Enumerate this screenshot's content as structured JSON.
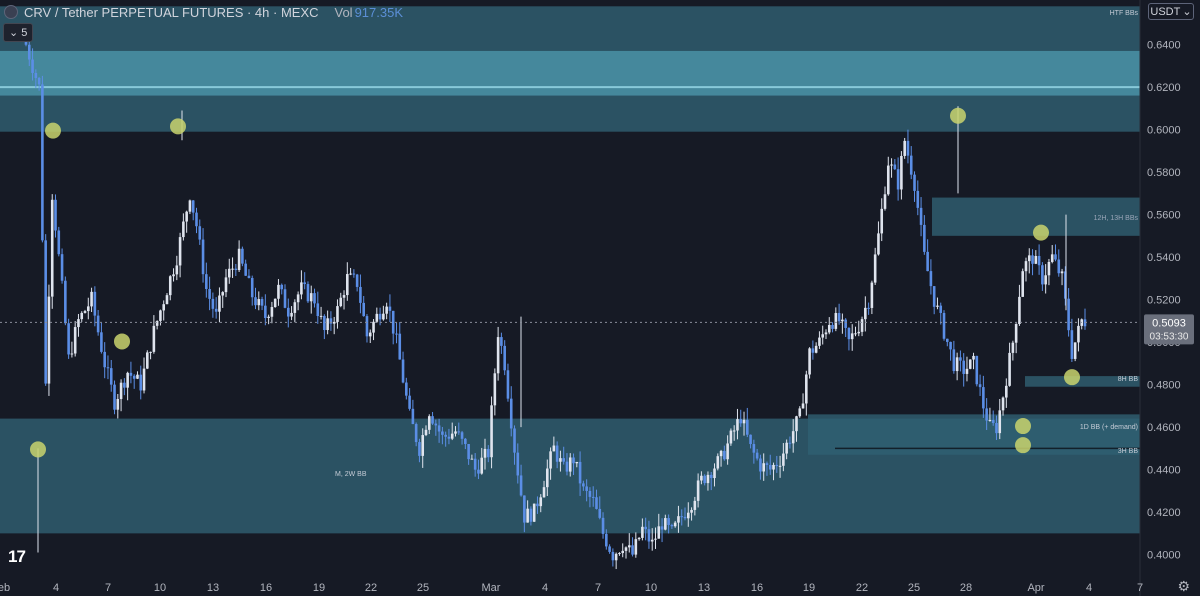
{
  "header": {
    "symbol": "CRV / Tether PERPETUAL FUTURES · 4h · MEXC",
    "vol_label": "Vol",
    "vol_value": "917.35K",
    "indicator_count": "5",
    "currency": "USDT"
  },
  "colors": {
    "background": "#161a25",
    "zone": "#2f5f72",
    "zone_band": "#4a92a6",
    "candle_up": "#dfe4ee",
    "candle_down": "#5b8ee6",
    "marker": "#c9d46d",
    "price_line": "#8a8f9c"
  },
  "chart_data": {
    "type": "candlestick",
    "x_ticks": [
      "eb",
      "4",
      "7",
      "10",
      "13",
      "16",
      "19",
      "22",
      "25",
      "Mar",
      "4",
      "7",
      "10",
      "13",
      "16",
      "19",
      "22",
      "25",
      "28",
      "Apr",
      "4",
      "7"
    ],
    "y_ticks": [
      "0.6400",
      "0.6200",
      "0.6000",
      "0.5800",
      "0.5600",
      "0.5400",
      "0.5200",
      "0.5000",
      "0.4800",
      "0.4600",
      "0.4400",
      "0.4200",
      "0.4000"
    ],
    "ylim": [
      0.389,
      0.6525
    ],
    "current_price": {
      "value": 0.5093,
      "label": "0.5093",
      "countdown": "03:53:30"
    },
    "zone_labels": [
      "HTF BBs",
      "12H, 13H BBs",
      "8H BB",
      "1D BB (+ demand)",
      "3H BB",
      "M, 2W BB"
    ],
    "close_path": [
      [
        0,
        0.64
      ],
      [
        4,
        0.62
      ],
      [
        6,
        0.48
      ],
      [
        8,
        0.57
      ],
      [
        11,
        0.525
      ],
      [
        13,
        0.492
      ],
      [
        16,
        0.51
      ],
      [
        20,
        0.52
      ],
      [
        24,
        0.49
      ],
      [
        27,
        0.472
      ],
      [
        31,
        0.486
      ],
      [
        35,
        0.48
      ],
      [
        39,
        0.505
      ],
      [
        43,
        0.525
      ],
      [
        46,
        0.54
      ],
      [
        50,
        0.57
      ],
      [
        52,
        0.555
      ],
      [
        55,
        0.525
      ],
      [
        58,
        0.512
      ],
      [
        61,
        0.53
      ],
      [
        65,
        0.54
      ],
      [
        69,
        0.522
      ],
      [
        73,
        0.512
      ],
      [
        77,
        0.525
      ],
      [
        80,
        0.515
      ],
      [
        84,
        0.525
      ],
      [
        88,
        0.52
      ],
      [
        91,
        0.505
      ],
      [
        95,
        0.515
      ],
      [
        98,
        0.53
      ],
      [
        101,
        0.528
      ],
      [
        104,
        0.503
      ],
      [
        107,
        0.512
      ],
      [
        110,
        0.52
      ],
      [
        113,
        0.5
      ],
      [
        117,
        0.465
      ],
      [
        120,
        0.45
      ],
      [
        123,
        0.468
      ],
      [
        127,
        0.455
      ],
      [
        131,
        0.458
      ],
      [
        134,
        0.45
      ],
      [
        137,
        0.44
      ],
      [
        141,
        0.448
      ],
      [
        144,
        0.505
      ],
      [
        146,
        0.49
      ],
      [
        149,
        0.45
      ],
      [
        152,
        0.418
      ],
      [
        155,
        0.42
      ],
      [
        158,
        0.435
      ],
      [
        161,
        0.45
      ],
      [
        164,
        0.44
      ],
      [
        167,
        0.445
      ],
      [
        170,
        0.43
      ],
      [
        173,
        0.425
      ],
      [
        176,
        0.41
      ],
      [
        179,
        0.4
      ],
      [
        182,
        0.405
      ],
      [
        185,
        0.4
      ],
      [
        188,
        0.412
      ],
      [
        191,
        0.405
      ],
      [
        194,
        0.415
      ],
      [
        197,
        0.41
      ],
      [
        200,
        0.418
      ],
      [
        203,
        0.425
      ],
      [
        206,
        0.435
      ],
      [
        209,
        0.44
      ],
      [
        212,
        0.445
      ],
      [
        215,
        0.455
      ],
      [
        218,
        0.465
      ],
      [
        221,
        0.45
      ],
      [
        224,
        0.442
      ],
      [
        227,
        0.44
      ],
      [
        230,
        0.445
      ],
      [
        233,
        0.455
      ],
      [
        236,
        0.465
      ],
      [
        239,
        0.495
      ],
      [
        242,
        0.5
      ],
      [
        245,
        0.51
      ],
      [
        248,
        0.51
      ],
      [
        251,
        0.5
      ],
      [
        254,
        0.508
      ],
      [
        257,
        0.52
      ],
      [
        260,
        0.55
      ],
      [
        263,
        0.585
      ],
      [
        266,
        0.575
      ],
      [
        268,
        0.595
      ],
      [
        271,
        0.575
      ],
      [
        274,
        0.54
      ],
      [
        277,
        0.52
      ],
      [
        280,
        0.505
      ],
      [
        283,
        0.49
      ],
      [
        286,
        0.487
      ],
      [
        289,
        0.49
      ],
      [
        292,
        0.47
      ],
      [
        294,
        0.46
      ],
      [
        296,
        0.46
      ],
      [
        298,
        0.475
      ],
      [
        301,
        0.5
      ],
      [
        304,
        0.535
      ],
      [
        307,
        0.54
      ],
      [
        310,
        0.53
      ],
      [
        313,
        0.54
      ],
      [
        316,
        0.53
      ],
      [
        319,
        0.495
      ],
      [
        322,
        0.51
      ]
    ],
    "series": [
      {
        "name": "HTF BBs",
        "type": "zone",
        "y0": 0.599,
        "y1": 0.658
      },
      {
        "name": "",
        "type": "band",
        "y0": 0.616,
        "y1": 0.637
      },
      {
        "name": "",
        "type": "line",
        "y": 0.62
      },
      {
        "name": "M, 2W BB",
        "type": "zone",
        "y0": 0.41,
        "y1": 0.464
      },
      {
        "name": "12H, 13H BBs",
        "type": "zone",
        "y0": 0.55,
        "y1": 0.568
      },
      {
        "name": "8H BB",
        "type": "zone",
        "y0": 0.479,
        "y1": 0.484
      },
      {
        "name": "1D BB (+ demand)",
        "type": "zone",
        "y0": 0.447,
        "y1": 0.466
      },
      {
        "name": "3H BB",
        "type": "line",
        "y": 0.45
      },
      {
        "name": "",
        "type": "markers",
        "points": [
          [
            0.5995,
            "low"
          ],
          [
            0.5003,
            "high"
          ],
          [
            0.4495,
            "low"
          ],
          [
            0.4605,
            "low"
          ],
          [
            0.6015,
            "high"
          ],
          [
            0.6065,
            "high"
          ],
          [
            0.5515,
            "high"
          ],
          [
            0.4515,
            "low"
          ],
          [
            0.4835,
            "low"
          ]
        ]
      }
    ]
  },
  "ui": {
    "logo": "17",
    "settings": "⚙"
  }
}
